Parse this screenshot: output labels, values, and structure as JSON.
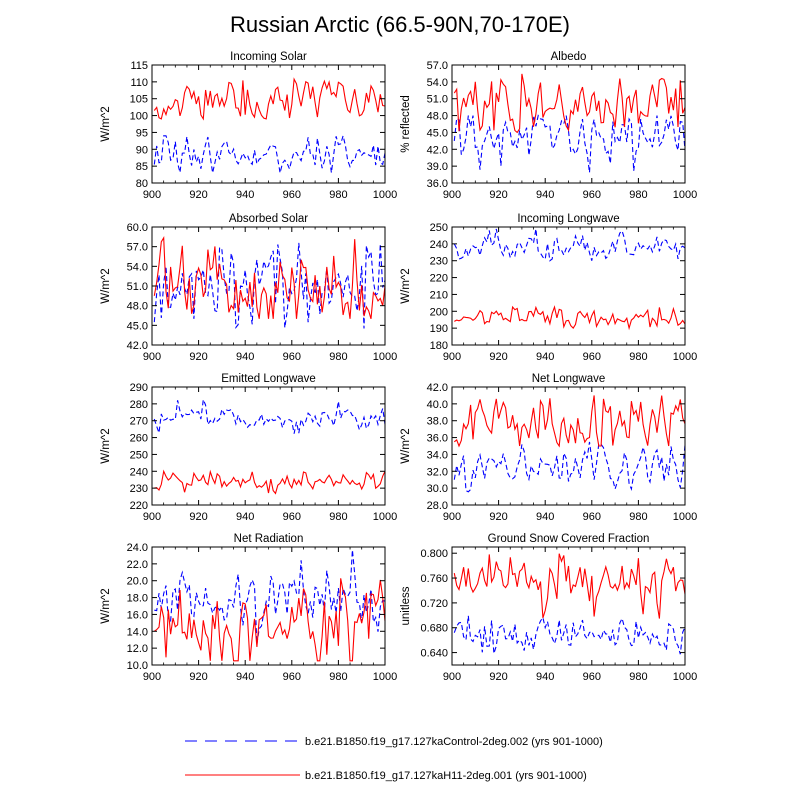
{
  "title": "Russian Arctic (66.5-90N,70-170E)",
  "legend": {
    "placement": "bottom",
    "entries": [
      {
        "label": "b.e21.B1850.f19_g17.127kaControl-2deg.002 (yrs 901-1000)",
        "color": "#0000ff",
        "style": "dashed"
      },
      {
        "label": "b.e21.B1850.f19_g17.127kaH11-2deg.001 (yrs 901-1000)",
        "color": "#ff0000",
        "style": "solid"
      }
    ]
  },
  "chart_data": [
    {
      "type": "line",
      "title": "Incoming Solar",
      "ylabel": "W/m^2",
      "xlim": [
        900,
        1000
      ],
      "xticks": [
        "900",
        "920",
        "940",
        "960",
        "980",
        "1000"
      ],
      "ylim": [
        80,
        115
      ],
      "yticks": [
        "80",
        "85",
        "90",
        "95",
        "100",
        "105",
        "110",
        "115"
      ],
      "series": [
        {
          "name": "control",
          "color": "#0000ff",
          "dashed": true,
          "mean": 88.5,
          "amp": 2.5,
          "start": 85.5,
          "min": 83,
          "max": 94,
          "seed": 11
        },
        {
          "name": "H11",
          "color": "#ff0000",
          "dashed": false,
          "mean": 104.5,
          "amp": 2.8,
          "start": 101.5,
          "min": 99,
          "max": 111,
          "seed": 12
        }
      ]
    },
    {
      "type": "line",
      "title": "Albedo",
      "ylabel": "% reflected",
      "xlim": [
        900,
        1000
      ],
      "xticks": [
        "900",
        "920",
        "940",
        "960",
        "980",
        "1000"
      ],
      "ylim": [
        36,
        57
      ],
      "yticks": [
        "36.0",
        "39.0",
        "42.0",
        "45.0",
        "48.0",
        "51.0",
        "54.0",
        "57.0"
      ],
      "series": [
        {
          "name": "control",
          "color": "#0000ff",
          "dashed": true,
          "mean": 44.5,
          "amp": 2.3,
          "start": 43.5,
          "min": 37.5,
          "max": 48,
          "seed": 21
        },
        {
          "name": "H11",
          "color": "#ff0000",
          "dashed": false,
          "mean": 50.5,
          "amp": 2.3,
          "start": 52,
          "min": 45,
          "max": 55.5,
          "seed": 22
        }
      ]
    },
    {
      "type": "line",
      "title": "Absorbed Solar",
      "ylabel": "W/m^2",
      "xlim": [
        900,
        1000
      ],
      "xticks": [
        "900",
        "920",
        "940",
        "960",
        "980",
        "1000"
      ],
      "ylim": [
        42,
        60
      ],
      "yticks": [
        "42.0",
        "45.0",
        "48.0",
        "51.0",
        "54.0",
        "57.0",
        "60.0"
      ],
      "series": [
        {
          "name": "control",
          "color": "#0000ff",
          "dashed": true,
          "mean": 50.5,
          "amp": 2.4,
          "start": 45.5,
          "min": 44,
          "max": 58,
          "seed": 31
        },
        {
          "name": "H11",
          "color": "#ff0000",
          "dashed": false,
          "mean": 51.5,
          "amp": 3.0,
          "start": 49.5,
          "min": 46,
          "max": 58.5,
          "seed": 32
        }
      ]
    },
    {
      "type": "line",
      "title": "Incoming Longwave",
      "ylabel": "W/m^2",
      "xlim": [
        900,
        1000
      ],
      "xticks": [
        "900",
        "920",
        "940",
        "960",
        "980",
        "1000"
      ],
      "ylim": [
        180,
        250
      ],
      "yticks": [
        "180",
        "190",
        "200",
        "210",
        "220",
        "230",
        "240",
        "250"
      ],
      "series": [
        {
          "name": "control",
          "color": "#0000ff",
          "dashed": true,
          "mean": 238,
          "amp": 3.5,
          "start": 240,
          "min": 230,
          "max": 249,
          "seed": 41
        },
        {
          "name": "H11",
          "color": "#ff0000",
          "dashed": false,
          "mean": 196,
          "amp": 2.5,
          "start": 194,
          "min": 190,
          "max": 203,
          "seed": 42
        }
      ]
    },
    {
      "type": "line",
      "title": "Emitted Longwave",
      "ylabel": "W/m^2",
      "xlim": [
        900,
        1000
      ],
      "xticks": [
        "900",
        "920",
        "940",
        "960",
        "980",
        "1000"
      ],
      "ylim": [
        220,
        290
      ],
      "yticks": [
        "220",
        "230",
        "240",
        "250",
        "260",
        "270",
        "280",
        "290"
      ],
      "series": [
        {
          "name": "control",
          "color": "#0000ff",
          "dashed": true,
          "mean": 270.5,
          "amp": 3.0,
          "start": 271,
          "min": 262,
          "max": 283,
          "seed": 51
        },
        {
          "name": "H11",
          "color": "#ff0000",
          "dashed": false,
          "mean": 233,
          "amp": 2.5,
          "start": 230,
          "min": 226,
          "max": 240,
          "seed": 52
        }
      ]
    },
    {
      "type": "line",
      "title": "Net Longwave",
      "ylabel": "W/m^2",
      "xlim": [
        900,
        1000
      ],
      "xticks": [
        "900",
        "920",
        "940",
        "960",
        "980",
        "1000"
      ],
      "ylim": [
        28,
        42
      ],
      "yticks": [
        "28.0",
        "30.0",
        "32.0",
        "34.0",
        "36.0",
        "38.0",
        "40.0",
        "42.0"
      ],
      "series": [
        {
          "name": "control",
          "color": "#0000ff",
          "dashed": true,
          "mean": 32.3,
          "amp": 1.3,
          "start": 31,
          "min": 29.5,
          "max": 35.5,
          "seed": 61
        },
        {
          "name": "H11",
          "color": "#ff0000",
          "dashed": false,
          "mean": 37.4,
          "amp": 1.5,
          "start": 35.5,
          "min": 35,
          "max": 41,
          "seed": 62
        }
      ]
    },
    {
      "type": "line",
      "title": "Net Radiation",
      "ylabel": "W/m^2",
      "xlim": [
        900,
        1000
      ],
      "xticks": [
        "900",
        "920",
        "940",
        "960",
        "980",
        "1000"
      ],
      "ylim": [
        10,
        24
      ],
      "yticks": [
        "10.0",
        "12.0",
        "14.0",
        "16.0",
        "18.0",
        "20.0",
        "22.0",
        "24.0"
      ],
      "series": [
        {
          "name": "control",
          "color": "#0000ff",
          "dashed": true,
          "mean": 17.8,
          "amp": 1.8,
          "start": 16.5,
          "min": 12,
          "max": 24,
          "seed": 71
        },
        {
          "name": "H11",
          "color": "#ff0000",
          "dashed": false,
          "mean": 14.5,
          "amp": 2.3,
          "start": 14,
          "min": 10.5,
          "max": 20.5,
          "seed": 72
        }
      ]
    },
    {
      "type": "line",
      "title": "Ground Snow Covered Fraction",
      "ylabel": "unitless",
      "xlim": [
        900,
        1000
      ],
      "xticks": [
        "900",
        "920",
        "940",
        "960",
        "980",
        "1000"
      ],
      "ylim": [
        0.62,
        0.81
      ],
      "yticks": [
        "0.640",
        "0.680",
        "0.720",
        "0.760",
        "0.800"
      ],
      "series": [
        {
          "name": "control",
          "color": "#0000ff",
          "dashed": true,
          "mean": 0.672,
          "amp": 0.013,
          "start": 0.672,
          "min": 0.635,
          "max": 0.705,
          "seed": 81
        },
        {
          "name": "H11",
          "color": "#ff0000",
          "dashed": false,
          "mean": 0.757,
          "amp": 0.017,
          "start": 0.768,
          "min": 0.69,
          "max": 0.8,
          "seed": 82
        }
      ]
    }
  ]
}
